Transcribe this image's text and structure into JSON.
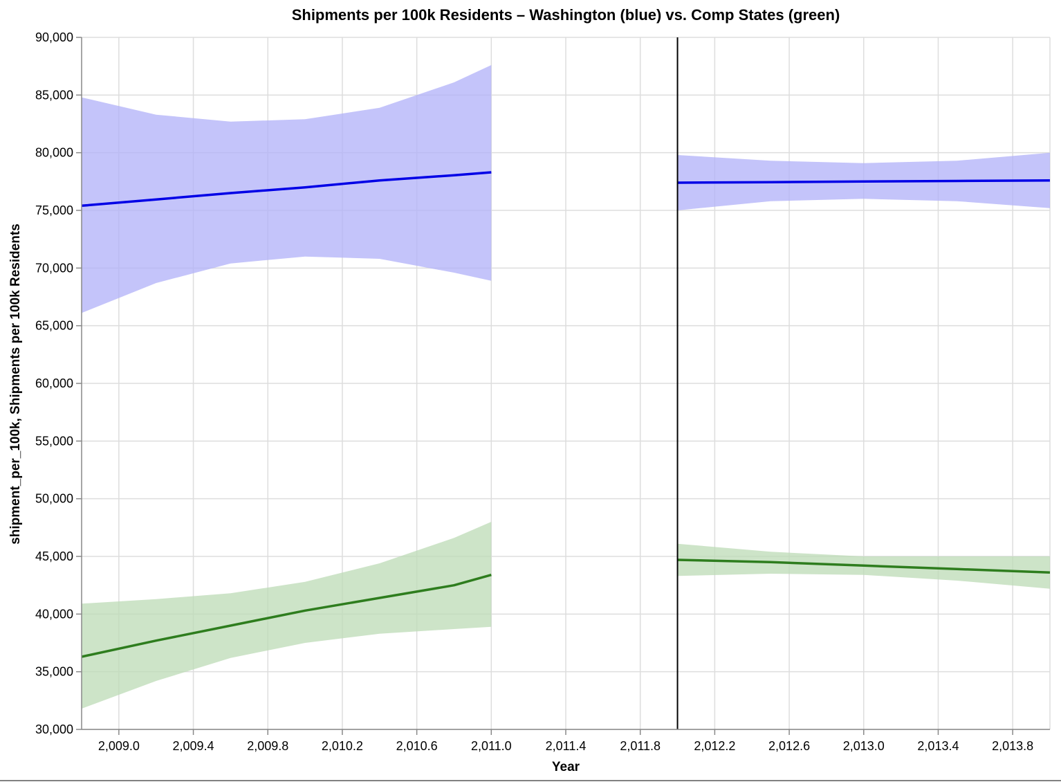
{
  "chart_data": {
    "type": "line",
    "title": "Shipments per 100k Residents – Washington (blue) vs. Comp States (green)",
    "xlabel": "Year",
    "ylabel": "shipment_per_100k, Shipments per 100k Residents",
    "xlim": [
      2008.8,
      2014.0
    ],
    "ylim": [
      30000,
      90000
    ],
    "x_ticks": [
      2009.0,
      2009.4,
      2009.8,
      2010.2,
      2010.6,
      2011.0,
      2011.4,
      2011.8,
      2012.2,
      2012.6,
      2013.0,
      2013.4,
      2013.8
    ],
    "x_tick_labels": [
      "2,009.0",
      "2,009.4",
      "2,009.8",
      "2,010.2",
      "2,010.6",
      "2,011.0",
      "2,011.4",
      "2,011.8",
      "2,012.2",
      "2,012.6",
      "2,013.0",
      "2,013.4",
      "2,013.8"
    ],
    "y_ticks": [
      30000,
      35000,
      40000,
      45000,
      50000,
      55000,
      60000,
      65000,
      70000,
      75000,
      80000,
      85000,
      90000
    ],
    "y_tick_labels": [
      "30,000",
      "35,000",
      "40,000",
      "45,000",
      "50,000",
      "55,000",
      "60,000",
      "65,000",
      "70,000",
      "75,000",
      "80,000",
      "85,000",
      "90,000"
    ],
    "grid": true,
    "vertical_rule_x": 2012.0,
    "series": [
      {
        "group": "washington-pre",
        "color": "#0000e6",
        "band_color": "#b0b0f8",
        "x": [
          2008.8,
          2009.2,
          2009.6,
          2010.0,
          2010.4,
          2010.8,
          2011.0
        ],
        "y": [
          75400,
          75950,
          76500,
          77000,
          77600,
          78050,
          78300
        ],
        "lower": [
          66100,
          68700,
          70400,
          71000,
          70800,
          69600,
          68900
        ],
        "upper": [
          84800,
          83300,
          82700,
          82900,
          83900,
          86100,
          87600
        ]
      },
      {
        "group": "washington-post",
        "color": "#0000e6",
        "band_color": "#b0b0f8",
        "x": [
          2012.0,
          2012.5,
          2013.0,
          2013.5,
          2014.0
        ],
        "y": [
          77400,
          77450,
          77500,
          77550,
          77600
        ],
        "lower": [
          75000,
          75800,
          76000,
          75800,
          75200
        ],
        "upper": [
          79800,
          79300,
          79100,
          79300,
          80000
        ]
      },
      {
        "group": "comp-pre",
        "color": "#2e7d1e",
        "band_color": "#bcdbb6",
        "x": [
          2008.8,
          2009.2,
          2009.6,
          2010.0,
          2010.4,
          2010.8,
          2011.0
        ],
        "y": [
          36300,
          37700,
          39000,
          40300,
          41400,
          42500,
          43400
        ],
        "lower": [
          31800,
          34200,
          36200,
          37500,
          38300,
          38700,
          38900
        ],
        "upper": [
          40900,
          41300,
          41800,
          42800,
          44400,
          46600,
          48000
        ]
      },
      {
        "group": "comp-post",
        "color": "#2e7d1e",
        "band_color": "#bcdbb6",
        "x": [
          2012.0,
          2012.5,
          2013.0,
          2013.5,
          2014.0
        ],
        "y": [
          44700,
          44500,
          44200,
          43900,
          43600
        ],
        "lower": [
          43300,
          43500,
          43400,
          42900,
          42200
        ],
        "upper": [
          46100,
          45400,
          45000,
          45000,
          45000
        ]
      }
    ]
  }
}
